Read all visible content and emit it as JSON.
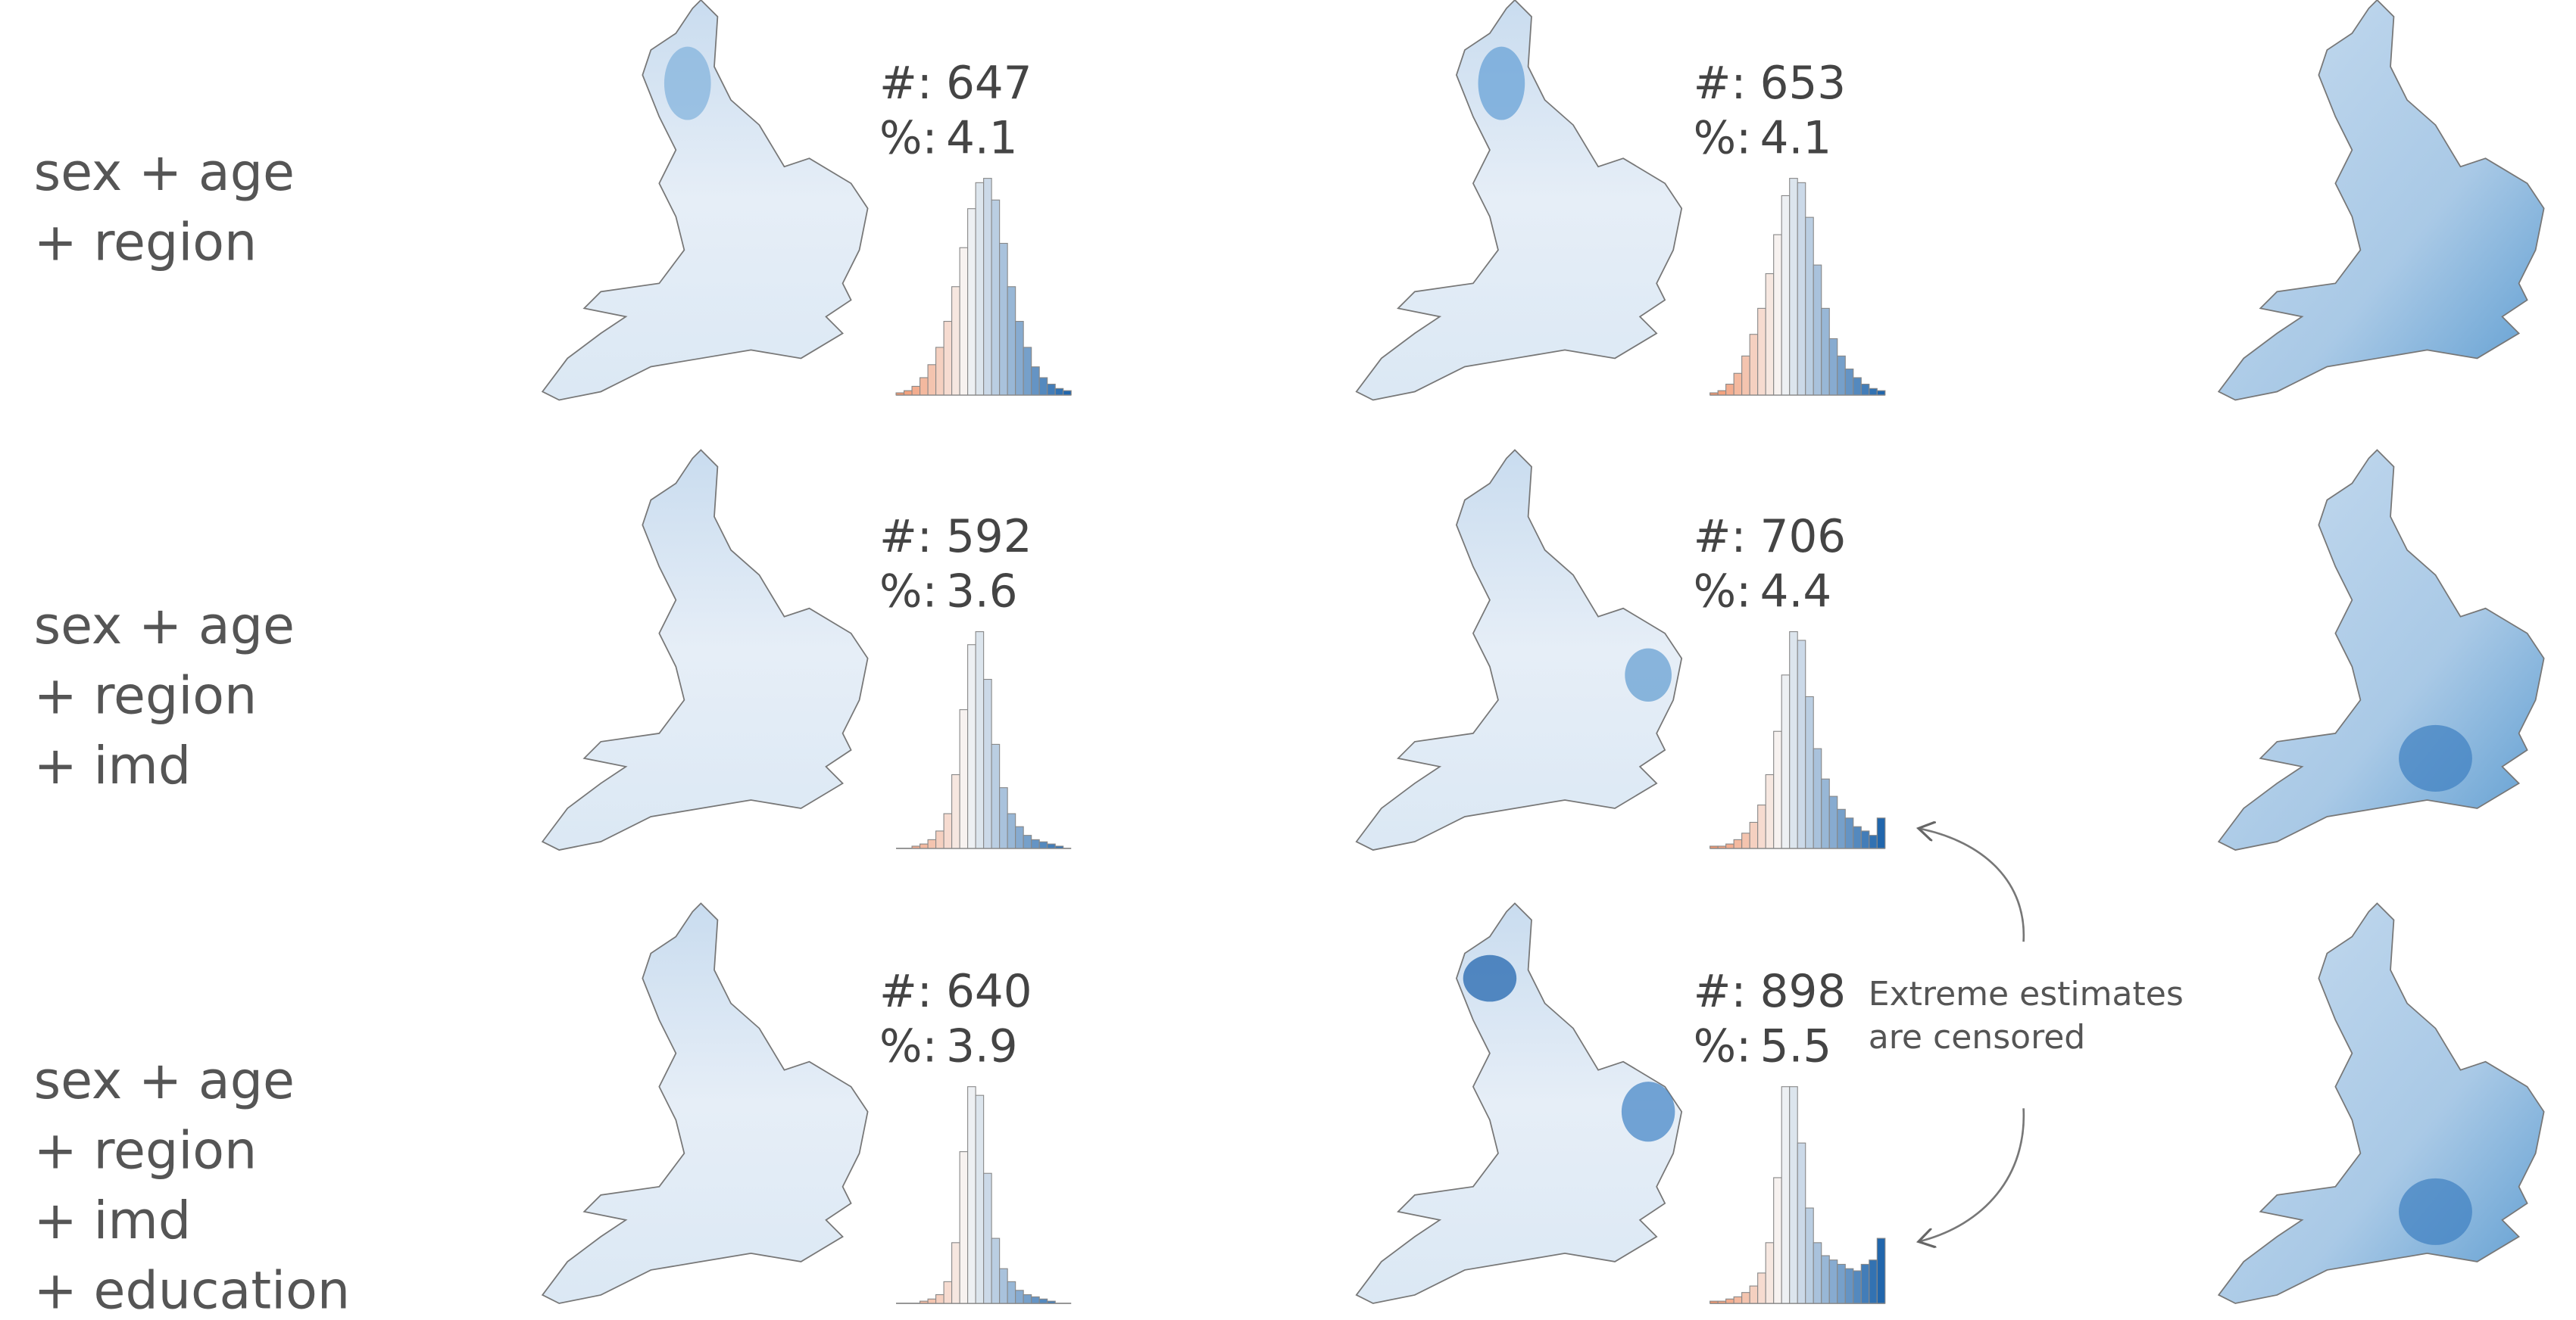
{
  "count_label": "#:",
  "percent_label": "%:",
  "annotation": [
    "Extreme estimates",
    "are censored"
  ],
  "rows": [
    {
      "label_lines": [
        "sex  + age",
        "+ region"
      ],
      "panels": [
        {
          "count": 647,
          "percent": 4.1,
          "histogram": [
            1,
            2,
            4,
            8,
            14,
            22,
            34,
            50,
            68,
            86,
            98,
            100,
            90,
            70,
            50,
            34,
            22,
            13,
            8,
            5,
            3,
            2
          ]
        },
        {
          "count": 653,
          "percent": 4.1,
          "histogram": [
            1,
            2,
            5,
            10,
            18,
            28,
            40,
            56,
            74,
            92,
            100,
            98,
            82,
            60,
            40,
            26,
            18,
            12,
            8,
            5,
            3,
            2
          ]
        }
      ]
    },
    {
      "label_lines": [
        "sex  + age",
        "+ region",
        "+ imd"
      ],
      "panels": [
        {
          "count": 592,
          "percent": 3.6,
          "histogram": [
            0,
            0,
            1,
            2,
            4,
            8,
            16,
            34,
            64,
            94,
            100,
            78,
            48,
            28,
            16,
            10,
            6,
            4,
            3,
            2,
            1,
            0
          ]
        },
        {
          "count": 706,
          "percent": 4.4,
          "histogram": [
            1,
            1,
            2,
            4,
            7,
            12,
            20,
            34,
            54,
            80,
            100,
            96,
            70,
            46,
            32,
            24,
            18,
            14,
            10,
            8,
            6,
            14
          ]
        }
      ]
    },
    {
      "label_lines": [
        "sex  + age",
        "+ region",
        "+ imd",
        "+ education"
      ],
      "panels": [
        {
          "count": 640,
          "percent": 3.9,
          "histogram": [
            0,
            0,
            0,
            1,
            2,
            4,
            10,
            28,
            70,
            100,
            96,
            60,
            30,
            16,
            10,
            6,
            4,
            3,
            2,
            1,
            0,
            0
          ]
        },
        {
          "count": 898,
          "percent": 5.5,
          "histogram": [
            1,
            1,
            2,
            3,
            5,
            8,
            14,
            28,
            58,
            100,
            100,
            74,
            44,
            28,
            22,
            20,
            18,
            16,
            15,
            18,
            20,
            30
          ]
        }
      ]
    }
  ]
}
